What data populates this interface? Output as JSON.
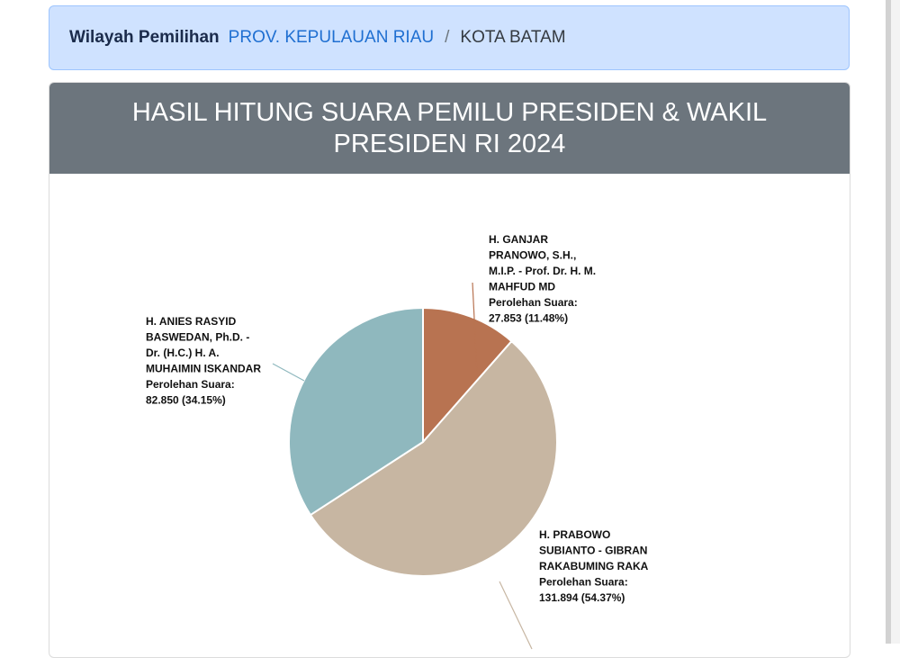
{
  "breadcrumb": {
    "label": "Wilayah Pemilihan",
    "province": "PROV. KEPULAUAN RIAU",
    "separator": "/",
    "city": "KOTA BATAM"
  },
  "card": {
    "title": "HASIL HITUNG SUARA PEMILU PRESIDEN & WAKIL PRESIDEN RI 2024"
  },
  "chart_data": {
    "type": "pie",
    "vote_label": "Perolehan Suara:",
    "slices": [
      {
        "name": "H. GANJAR PRANOWO, S.H., M.I.P. - Prof. Dr. H. M. MAHFUD MD",
        "name_lines": [
          "H. GANJAR",
          "PRANOWO, S.H.,",
          "M.I.P. - Prof. Dr. H. M.",
          "MAHFUD MD"
        ],
        "value": 27853,
        "percent": 11.48,
        "value_text": "27.853 (11.48%)",
        "color": "#b87351"
      },
      {
        "name": "H. PRABOWO SUBIANTO - GIBRAN RAKABUMING RAKA",
        "name_lines": [
          "H. PRABOWO",
          "SUBIANTO - GIBRAN",
          "RAKABUMING RAKA"
        ],
        "value": 131894,
        "percent": 54.37,
        "value_text": "131.894 (54.37%)",
        "color": "#c7b6a2"
      },
      {
        "name": "H. ANIES RASYID BASWEDAN, Ph.D. - Dr. (H.C.) H. A. MUHAIMIN ISKANDAR",
        "name_lines": [
          "H. ANIES RASYID",
          "BASWEDAN, Ph.D. -",
          "Dr. (H.C.) H. A.",
          "MUHAIMIN ISKANDAR"
        ],
        "value": 82850,
        "percent": 34.15,
        "value_text": "82.850 (34.15%)",
        "color": "#8fb8be"
      }
    ]
  }
}
